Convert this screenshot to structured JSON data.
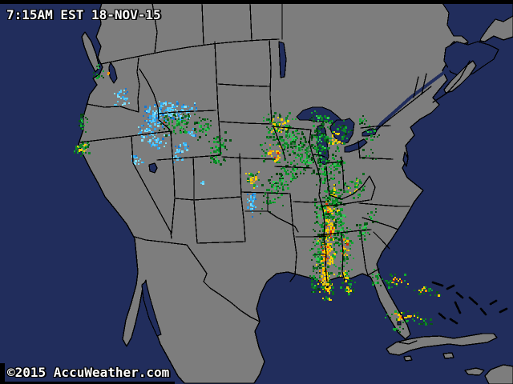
{
  "overlay": {
    "timestamp": "7:15AM EST 18-NOV-15",
    "copyright": "©2015 AccuWeather.com"
  },
  "map": {
    "kind": "weather-radar-map",
    "region": "United States and surroundings",
    "colors": {
      "ocean": "#212D5C",
      "land": "#7D7D7D",
      "border": "#000000",
      "top_bar": "#000000",
      "text": "#FFFFFF",
      "text_outline": "#000000"
    },
    "radar_palettes": {
      "snow": {
        "core": [
          "#55CCFF",
          "#7FE0FF",
          "#2EA7F0",
          "#55CCFF"
        ],
        "edge": [
          "#55CCFF",
          "#2EA7F0",
          "#1877D0",
          "#7FE0FF"
        ]
      },
      "rain": {
        "core": [
          "#11A832",
          "#0C8526",
          "#2FCC55",
          "#0C8526"
        ],
        "edge": [
          "#0A6B1C",
          "#085415",
          "#11A832",
          "#064010"
        ]
      },
      "mix": {
        "core": [
          "#F5D000",
          "#11A832",
          "#0C8526",
          "#F5D000"
        ],
        "edge": [
          "#0A6B1C",
          "#11A832",
          "#085415",
          "#0C8526"
        ]
      },
      "mixR": {
        "core": [
          "#F5D000",
          "#FF9000",
          "#E32400",
          "#11A832",
          "#F5D000"
        ],
        "edge": [
          "#0C8526",
          "#0A6B1C",
          "#11A832"
        ]
      },
      "severe": {
        "core": [
          "#F7D300",
          "#F7D300",
          "#FF9900",
          "#E32800",
          "#F7D300",
          "#FFB000"
        ],
        "edge": [
          "#0C8526",
          "#F7D300",
          "#0A6B1C",
          "#11A832"
        ]
      }
    },
    "radar_clusters": [
      [
        211,
        137,
        24,
        9,
        120,
        "snow"
      ],
      [
        193,
        151,
        10,
        7,
        30,
        "snow"
      ],
      [
        150,
        120,
        8,
        9,
        30,
        "snow"
      ],
      [
        192,
        142,
        8,
        8,
        28,
        "snow"
      ],
      [
        184,
        168,
        9,
        6,
        22,
        "snow"
      ],
      [
        193,
        176,
        12,
        7,
        34,
        "snow"
      ],
      [
        226,
        185,
        8,
        5,
        20,
        "snow"
      ],
      [
        220,
        195,
        7,
        5,
        14,
        "snow"
      ],
      [
        167,
        198,
        8,
        6,
        16,
        "snow"
      ],
      [
        181,
        161,
        7,
        5,
        12,
        "snow"
      ],
      [
        236,
        166,
        6,
        4,
        8,
        "snow"
      ],
      [
        313,
        252,
        4,
        14,
        34,
        "snow"
      ],
      [
        251,
        226,
        2,
        2,
        3,
        "snow"
      ],
      [
        219,
        155,
        16,
        9,
        80,
        "rain"
      ],
      [
        206,
        153,
        3,
        3,
        4,
        "mixR"
      ],
      [
        253,
        160,
        8,
        10,
        36,
        "rain"
      ],
      [
        272,
        181,
        9,
        12,
        50,
        "rain"
      ],
      [
        270,
        200,
        8,
        5,
        18,
        "rain"
      ],
      [
        103,
        153,
        5,
        9,
        20,
        "rain"
      ],
      [
        122,
        90,
        5,
        8,
        12,
        "rain"
      ],
      [
        135,
        91,
        2,
        2,
        3,
        "mixR"
      ],
      [
        101,
        184,
        8,
        7,
        40,
        "mix"
      ],
      [
        315,
        224,
        8,
        7,
        32,
        "severe"
      ],
      [
        338,
        245,
        10,
        16,
        40,
        "rain"
      ],
      [
        351,
        228,
        6,
        8,
        16,
        "rain"
      ],
      [
        348,
        155,
        14,
        12,
        85,
        "mix"
      ],
      [
        342,
        190,
        12,
        13,
        60,
        "mixR"
      ],
      [
        363,
        172,
        15,
        11,
        70,
        "rain"
      ],
      [
        378,
        193,
        13,
        16,
        95,
        "rain"
      ],
      [
        360,
        215,
        11,
        11,
        40,
        "rain"
      ],
      [
        344,
        229,
        9,
        9,
        24,
        "rain"
      ],
      [
        398,
        183,
        9,
        20,
        75,
        "rain"
      ],
      [
        404,
        215,
        8,
        16,
        55,
        "rain"
      ],
      [
        418,
        170,
        11,
        13,
        48,
        "mix"
      ],
      [
        400,
        146,
        11,
        7,
        32,
        "rain"
      ],
      [
        430,
        160,
        7,
        5,
        14,
        "rain"
      ],
      [
        419,
        205,
        7,
        11,
        36,
        "rain"
      ],
      [
        415,
        240,
        8,
        13,
        42,
        "mix"
      ],
      [
        440,
        232,
        11,
        11,
        48,
        "mix"
      ],
      [
        452,
        149,
        6,
        4,
        10,
        "rain"
      ],
      [
        461,
        168,
        7,
        9,
        16,
        "rain"
      ],
      [
        458,
        192,
        6,
        5,
        8,
        "rain"
      ],
      [
        409,
        258,
        6,
        11,
        48,
        "severe"
      ],
      [
        411,
        285,
        8,
        17,
        95,
        "severe"
      ],
      [
        407,
        315,
        9,
        19,
        105,
        "severe"
      ],
      [
        403,
        345,
        7,
        13,
        60,
        "severe"
      ],
      [
        409,
        364,
        5,
        9,
        30,
        "severe"
      ],
      [
        400,
        268,
        7,
        22,
        55,
        "rain"
      ],
      [
        394,
        314,
        6,
        22,
        50,
        "rain"
      ],
      [
        392,
        348,
        5,
        13,
        26,
        "rain"
      ],
      [
        424,
        278,
        6,
        22,
        65,
        "rain"
      ],
      [
        430,
        308,
        6,
        16,
        50,
        "mixR"
      ],
      [
        428,
        344,
        7,
        11,
        32,
        "mix"
      ],
      [
        434,
        361,
        7,
        7,
        20,
        "mix"
      ],
      [
        416,
        249,
        9,
        7,
        28,
        "rain"
      ],
      [
        452,
        288,
        9,
        9,
        28,
        "rain"
      ],
      [
        463,
        269,
        6,
        7,
        12,
        "rain"
      ],
      [
        470,
        347,
        6,
        9,
        16,
        "rain"
      ],
      [
        500,
        350,
        16,
        7,
        30,
        "mixR"
      ],
      [
        524,
        362,
        11,
        5,
        18,
        "mixR"
      ],
      [
        502,
        394,
        15,
        5,
        38,
        "severe"
      ],
      [
        529,
        400,
        9,
        4,
        14,
        "mix"
      ],
      [
        545,
        367,
        4,
        3,
        6,
        "mix"
      ],
      [
        494,
        409,
        5,
        3,
        8,
        "rain"
      ]
    ]
  }
}
